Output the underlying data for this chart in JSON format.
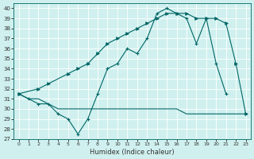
{
  "xlabel": "Humidex (Indice chaleur)",
  "bg_color": "#cff0ee",
  "grid_color": "#b0ddd9",
  "line_color": "#006666",
  "xlim": [
    -0.5,
    23.5
  ],
  "ylim": [
    27,
    40.5
  ],
  "yticks": [
    27,
    28,
    29,
    30,
    31,
    32,
    33,
    34,
    35,
    36,
    37,
    38,
    39,
    40
  ],
  "xticks": [
    0,
    1,
    2,
    3,
    4,
    5,
    6,
    7,
    8,
    9,
    10,
    11,
    12,
    13,
    14,
    15,
    16,
    17,
    18,
    19,
    20,
    21,
    22,
    23
  ],
  "line1_x": [
    0,
    1,
    2,
    3,
    4,
    5,
    6,
    7,
    8,
    9,
    10,
    11,
    12,
    13,
    14,
    15,
    16,
    17,
    18,
    19,
    20,
    21,
    22,
    23
  ],
  "line1_y": [
    31.5,
    31.0,
    31.0,
    30.5,
    30.0,
    30.0,
    30.0,
    30.0,
    30.0,
    30.0,
    30.0,
    30.0,
    30.0,
    30.0,
    30.0,
    30.0,
    30.0,
    29.5,
    29.5,
    29.5,
    29.5,
    29.5,
    29.5,
    29.5
  ],
  "line2_x": [
    0,
    1,
    2,
    3,
    4,
    5,
    6,
    7,
    8,
    9,
    10,
    11,
    12,
    13,
    14,
    15,
    16,
    17,
    18,
    19,
    20,
    21
  ],
  "line2_y": [
    31.5,
    31.0,
    30.5,
    30.5,
    29.5,
    29.0,
    27.5,
    29.0,
    31.5,
    34.0,
    34.5,
    36.0,
    35.5,
    37.0,
    39.5,
    40.0,
    39.5,
    39.0,
    36.5,
    39.0,
    34.5,
    31.5
  ],
  "line3_x": [
    0,
    2,
    3,
    5,
    6,
    7,
    8,
    9,
    10,
    11,
    12,
    13,
    14,
    15,
    16,
    17,
    18,
    19,
    20,
    21,
    22,
    23
  ],
  "line3_y": [
    31.5,
    32.0,
    32.5,
    33.5,
    34.0,
    34.5,
    35.5,
    36.5,
    37.0,
    37.5,
    38.0,
    38.5,
    39.0,
    39.5,
    39.5,
    39.5,
    39.0,
    39.0,
    39.0,
    38.5,
    34.5,
    29.5
  ]
}
